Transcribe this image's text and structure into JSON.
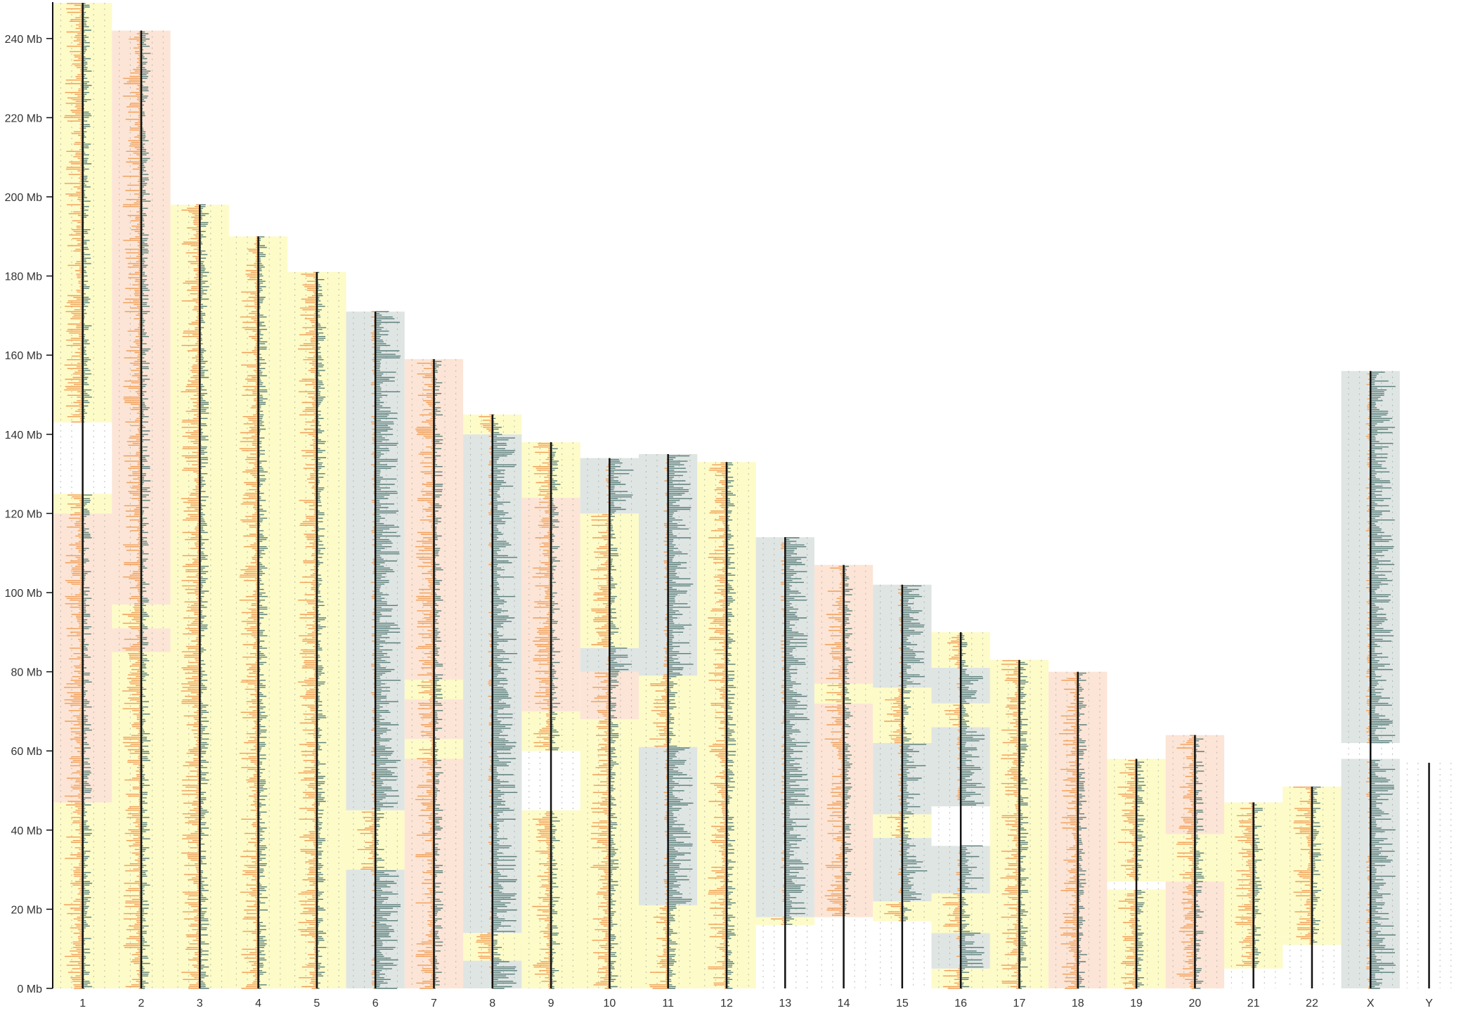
{
  "chart_data": {
    "type": "bar",
    "title": "",
    "xlabel": "",
    "ylabel": "",
    "ylim": [
      0,
      250
    ],
    "y_unit": "Mb",
    "y_ticks": [
      0,
      20,
      40,
      60,
      80,
      100,
      120,
      140,
      160,
      180,
      200,
      220,
      240
    ],
    "y_tick_labels": [
      "0 Mb",
      "20 Mb",
      "40 Mb",
      "60 Mb",
      "80 Mb",
      "100 Mb",
      "120 Mb",
      "140 Mb",
      "160 Mb",
      "180 Mb",
      "200 Mb",
      "220 Mb",
      "240 Mb"
    ],
    "categories": [
      "1",
      "2",
      "3",
      "4",
      "5",
      "6",
      "7",
      "8",
      "9",
      "10",
      "11",
      "12",
      "13",
      "14",
      "15",
      "16",
      "17",
      "18",
      "19",
      "20",
      "21",
      "22",
      "X",
      "Y"
    ],
    "lengths_mb": [
      249,
      242,
      198,
      190,
      181,
      171,
      159,
      145,
      138,
      134,
      135,
      133,
      114,
      107,
      102,
      90,
      83,
      80,
      58,
      64,
      47,
      51,
      156,
      57
    ],
    "segment_colors": {
      "yellow": "#fdfbc8",
      "peach": "#fce5d6",
      "grey": "#dfe5e3",
      "orange": "#f29d55",
      "teal": "#5a7f7b"
    },
    "segments": [
      [
        [
          "yellow",
          0,
          47
        ],
        [
          "peach",
          47,
          120
        ],
        [
          "yellow",
          120,
          125
        ],
        [
          "gap",
          125,
          143
        ],
        [
          "yellow",
          143,
          249
        ]
      ],
      [
        [
          "yellow",
          0,
          85
        ],
        [
          "peach",
          85,
          91
        ],
        [
          "yellow",
          91,
          97
        ],
        [
          "peach",
          97,
          242
        ]
      ],
      [
        [
          "yellow",
          0,
          198
        ]
      ],
      [
        [
          "yellow",
          0,
          190
        ]
      ],
      [
        [
          "yellow",
          0,
          181
        ]
      ],
      [
        [
          "grey",
          0,
          30
        ],
        [
          "yellow",
          30,
          45
        ],
        [
          "grey",
          45,
          171
        ]
      ],
      [
        [
          "peach",
          0,
          58
        ],
        [
          "yellow",
          58,
          63
        ],
        [
          "peach",
          63,
          73
        ],
        [
          "yellow",
          73,
          78
        ],
        [
          "peach",
          78,
          159
        ]
      ],
      [
        [
          "grey",
          0,
          7
        ],
        [
          "yellow",
          7,
          14
        ],
        [
          "grey",
          14,
          140
        ],
        [
          "yellow",
          140,
          145
        ]
      ],
      [
        [
          "yellow",
          0,
          45
        ],
        [
          "gap",
          45,
          60
        ],
        [
          "yellow",
          60,
          70
        ],
        [
          "peach",
          70,
          124
        ],
        [
          "yellow",
          124,
          138
        ]
      ],
      [
        [
          "yellow",
          0,
          68
        ],
        [
          "peach",
          68,
          80
        ],
        [
          "grey",
          80,
          86
        ],
        [
          "yellow",
          86,
          120
        ],
        [
          "grey",
          120,
          134
        ]
      ],
      [
        [
          "yellow",
          0,
          21
        ],
        [
          "grey",
          21,
          61
        ],
        [
          "yellow",
          61,
          79
        ],
        [
          "grey",
          79,
          135
        ]
      ],
      [
        [
          "yellow",
          0,
          133
        ]
      ],
      [
        [
          "gap",
          0,
          16
        ],
        [
          "yellow",
          16,
          18
        ],
        [
          "grey",
          18,
          114
        ]
      ],
      [
        [
          "gap",
          0,
          18
        ],
        [
          "peach",
          18,
          72
        ],
        [
          "yellow",
          72,
          77
        ],
        [
          "peach",
          77,
          107
        ]
      ],
      [
        [
          "gap",
          0,
          17
        ],
        [
          "yellow",
          17,
          22
        ],
        [
          "grey",
          22,
          38
        ],
        [
          "yellow",
          38,
          44
        ],
        [
          "grey",
          44,
          62
        ],
        [
          "yellow",
          62,
          76
        ],
        [
          "grey",
          76,
          102
        ]
      ],
      [
        [
          "yellow",
          0,
          5
        ],
        [
          "grey",
          5,
          14
        ],
        [
          "yellow",
          14,
          24
        ],
        [
          "grey",
          24,
          36
        ],
        [
          "gap",
          36,
          46
        ],
        [
          "grey",
          46,
          66
        ],
        [
          "yellow",
          66,
          72
        ],
        [
          "grey",
          72,
          81
        ],
        [
          "yellow",
          81,
          90
        ]
      ],
      [
        [
          "yellow",
          0,
          83
        ]
      ],
      [
        [
          "peach",
          0,
          80
        ]
      ],
      [
        [
          "yellow",
          0,
          25
        ],
        [
          "gap",
          25,
          27
        ],
        [
          "yellow",
          27,
          58
        ]
      ],
      [
        [
          "peach",
          0,
          27
        ],
        [
          "yellow",
          27,
          39
        ],
        [
          "peach",
          39,
          64
        ]
      ],
      [
        [
          "gap",
          0,
          5
        ],
        [
          "yellow",
          5,
          13
        ],
        [
          "yellow",
          13,
          47
        ]
      ],
      [
        [
          "gap",
          0,
          11
        ],
        [
          "yellow",
          11,
          13
        ],
        [
          "yellow",
          13,
          51
        ]
      ],
      [
        [
          "grey",
          0,
          58
        ],
        [
          "gap",
          58,
          62
        ],
        [
          "grey",
          62,
          156
        ]
      ],
      [
        [
          "gap",
          0,
          57
        ]
      ]
    ]
  }
}
